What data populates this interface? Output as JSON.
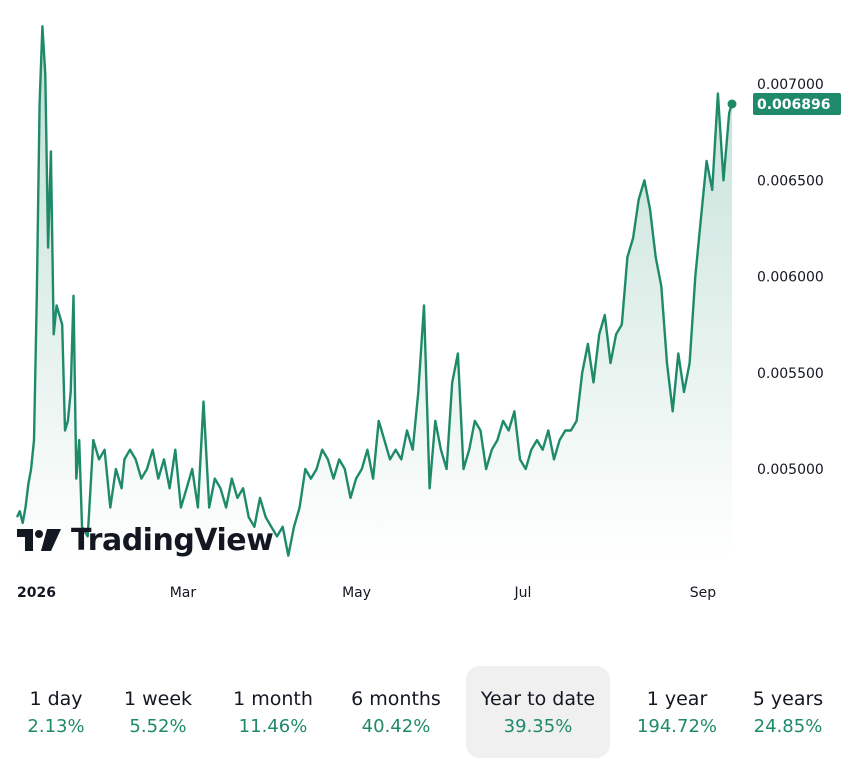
{
  "chart_data": {
    "type": "area",
    "y_ticks": [
      "0.007000",
      "0.006500",
      "0.006000",
      "0.005500",
      "0.005000"
    ],
    "y_tick_values": [
      0.007,
      0.0065,
      0.006,
      0.0055,
      0.005
    ],
    "ylim": [
      0.0045,
      0.0074
    ],
    "x_tick_labels": [
      "2026",
      "Mar",
      "May",
      "Jul",
      "Sep"
    ],
    "x_tick_dates": [
      "2026-01-01",
      "2026-03-01",
      "2026-05-01",
      "2026-07-01",
      "2026-09-01"
    ],
    "xlim": [
      "2026-01-01",
      "2026-09-11"
    ],
    "last_value": "0.006896",
    "last_value_num": 0.006896,
    "line_color": "#1f8a6a",
    "grid": false,
    "legend": "none",
    "series": [
      {
        "x": [
          "2026-01-01",
          "2026-01-02",
          "2026-01-03",
          "2026-01-04",
          "2026-01-05",
          "2026-01-06",
          "2026-01-07",
          "2026-01-08",
          "2026-01-09",
          "2026-01-10",
          "2026-01-11",
          "2026-01-12",
          "2026-01-13",
          "2026-01-14",
          "2026-01-15",
          "2026-01-16",
          "2026-01-17",
          "2026-01-18",
          "2026-01-19",
          "2026-01-20",
          "2026-01-21",
          "2026-01-22",
          "2026-01-23",
          "2026-01-24",
          "2026-01-26",
          "2026-01-28",
          "2026-01-30",
          "2026-02-01",
          "2026-02-03",
          "2026-02-05",
          "2026-02-07",
          "2026-02-08",
          "2026-02-10",
          "2026-02-12",
          "2026-02-14",
          "2026-02-16",
          "2026-02-18",
          "2026-02-20",
          "2026-02-22",
          "2026-02-24",
          "2026-02-26",
          "2026-02-28",
          "2026-03-02",
          "2026-03-04",
          "2026-03-06",
          "2026-03-08",
          "2026-03-10",
          "2026-03-12",
          "2026-03-14",
          "2026-03-16",
          "2026-03-18",
          "2026-03-20",
          "2026-03-22",
          "2026-03-24",
          "2026-03-26",
          "2026-03-28",
          "2026-03-30",
          "2026-04-01",
          "2026-04-03",
          "2026-04-05",
          "2026-04-07",
          "2026-04-09",
          "2026-04-11",
          "2026-04-13",
          "2026-04-15",
          "2026-04-17",
          "2026-04-19",
          "2026-04-21",
          "2026-04-23",
          "2026-04-25",
          "2026-04-27",
          "2026-04-29",
          "2026-05-01",
          "2026-05-03",
          "2026-05-05",
          "2026-05-07",
          "2026-05-09",
          "2026-05-11",
          "2026-05-13",
          "2026-05-15",
          "2026-05-17",
          "2026-05-19",
          "2026-05-21",
          "2026-05-23",
          "2026-05-25",
          "2026-05-27",
          "2026-05-29",
          "2026-05-31",
          "2026-06-02",
          "2026-06-04",
          "2026-06-06",
          "2026-06-08",
          "2026-06-10",
          "2026-06-12",
          "2026-06-14",
          "2026-06-16",
          "2026-06-18",
          "2026-06-20",
          "2026-06-22",
          "2026-06-24",
          "2026-06-26",
          "2026-06-28",
          "2026-06-30",
          "2026-07-02",
          "2026-07-04",
          "2026-07-06",
          "2026-07-08",
          "2026-07-10",
          "2026-07-12",
          "2026-07-14",
          "2026-07-16",
          "2026-07-18",
          "2026-07-20",
          "2026-07-22",
          "2026-07-24",
          "2026-07-26",
          "2026-07-28",
          "2026-07-30",
          "2026-08-01",
          "2026-08-03",
          "2026-08-05",
          "2026-08-07",
          "2026-08-09",
          "2026-08-11",
          "2026-08-13",
          "2026-08-15",
          "2026-08-17",
          "2026-08-19",
          "2026-08-21",
          "2026-08-23",
          "2026-08-25",
          "2026-08-27",
          "2026-08-29",
          "2026-08-31",
          "2026-09-02",
          "2026-09-04",
          "2026-09-06",
          "2026-09-08",
          "2026-09-10",
          "2026-09-11"
        ],
        "values": [
          0.00475,
          0.00478,
          0.00472,
          0.0048,
          0.00492,
          0.005,
          0.00515,
          0.0059,
          0.0069,
          0.0073,
          0.00705,
          0.00615,
          0.00665,
          0.0057,
          0.00585,
          0.0058,
          0.00575,
          0.0052,
          0.00525,
          0.0054,
          0.0059,
          0.00495,
          0.00515,
          0.0047,
          0.00465,
          0.00515,
          0.00505,
          0.0051,
          0.0048,
          0.005,
          0.0049,
          0.00505,
          0.0051,
          0.00505,
          0.00495,
          0.005,
          0.0051,
          0.00495,
          0.00505,
          0.0049,
          0.0051,
          0.0048,
          0.0049,
          0.005,
          0.0048,
          0.00535,
          0.0048,
          0.00495,
          0.0049,
          0.0048,
          0.00495,
          0.00485,
          0.0049,
          0.00475,
          0.0047,
          0.00485,
          0.00475,
          0.0047,
          0.00465,
          0.0047,
          0.00455,
          0.0047,
          0.0048,
          0.005,
          0.00495,
          0.005,
          0.0051,
          0.00505,
          0.00495,
          0.00505,
          0.005,
          0.00485,
          0.00495,
          0.005,
          0.0051,
          0.00495,
          0.00525,
          0.00515,
          0.00505,
          0.0051,
          0.00505,
          0.0052,
          0.0051,
          0.0054,
          0.00585,
          0.0049,
          0.00525,
          0.0051,
          0.005,
          0.00545,
          0.0056,
          0.005,
          0.0051,
          0.00525,
          0.0052,
          0.005,
          0.0051,
          0.00515,
          0.00525,
          0.0052,
          0.0053,
          0.00505,
          0.005,
          0.0051,
          0.00515,
          0.0051,
          0.0052,
          0.00505,
          0.00515,
          0.0052,
          0.0052,
          0.00525,
          0.0055,
          0.00565,
          0.00545,
          0.0057,
          0.0058,
          0.00555,
          0.0057,
          0.00575,
          0.0061,
          0.0062,
          0.0064,
          0.0065,
          0.00635,
          0.0061,
          0.00595,
          0.00555,
          0.0053,
          0.0056,
          0.0054,
          0.00555,
          0.006,
          0.0063,
          0.0066,
          0.00645,
          0.00695,
          0.0065,
          0.00685,
          0.0069
        ]
      }
    ]
  },
  "logo": {
    "text": "TradingView"
  },
  "periods": [
    {
      "label": "1 day",
      "value": "2.13%",
      "selected": false
    },
    {
      "label": "1 week",
      "value": "5.52%",
      "selected": false
    },
    {
      "label": "1 month",
      "value": "11.46%",
      "selected": false
    },
    {
      "label": "6 months",
      "value": "40.42%",
      "selected": false
    },
    {
      "label": "Year to date",
      "value": "39.35%",
      "selected": true
    },
    {
      "label": "1 year",
      "value": "194.72%",
      "selected": false
    },
    {
      "label": "5 years",
      "value": "24.85%",
      "selected": false
    }
  ],
  "colors": {
    "accent": "#1f8a6a",
    "text": "#131722",
    "selected_bg": "#f0f0f0"
  }
}
